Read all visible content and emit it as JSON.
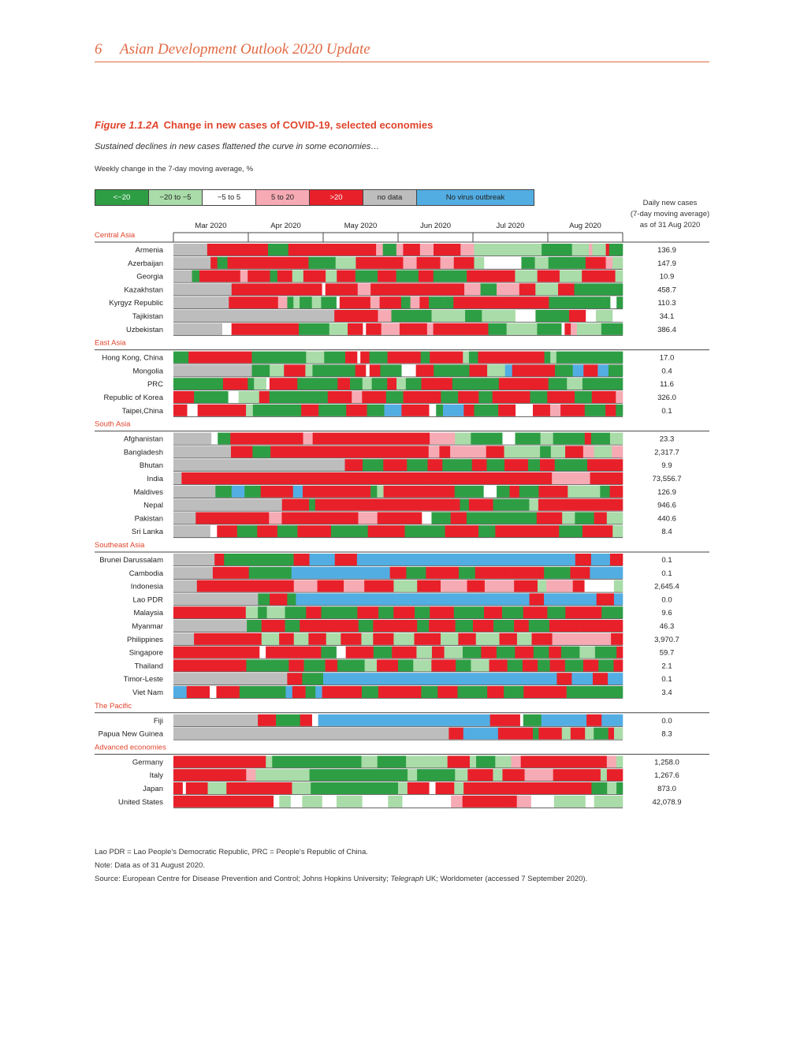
{
  "header": {
    "page_number": "6",
    "title": "Asian Development Outlook 2020 Update"
  },
  "figure": {
    "label": "Figure 1.1.2A",
    "title": "Change in new cases of COVID-19, selected economies",
    "subtitle": "Sustained declines in new cases flattened the curve in some economies…",
    "unit": "Weekly change in the 7-day moving average, %"
  },
  "legend": [
    {
      "key": "a",
      "label": "<−20",
      "color": "#2e9e44",
      "text_color": "#ffffff"
    },
    {
      "key": "b",
      "label": "−20 to −5",
      "color": "#a9dca8",
      "text_color": "#222222"
    },
    {
      "key": "c",
      "label": "−5 to 5",
      "color": "#ffffff",
      "text_color": "#222222"
    },
    {
      "key": "d",
      "label": "5 to 20",
      "color": "#f6aab4",
      "text_color": "#222222"
    },
    {
      "key": "e",
      "label": ">20",
      "color": "#e8202a",
      "text_color": "#ffffff"
    },
    {
      "key": "n",
      "label": "no data",
      "color": "#bdbdbd",
      "text_color": "#222222"
    },
    {
      "key": "v",
      "label": "No virus outbreak",
      "color": "#52ade2",
      "text_color": "#222222"
    }
  ],
  "daily_cases_header": [
    "Daily new cases",
    "(7-day moving average)",
    "as of 31 Aug 2020"
  ],
  "footnotes": {
    "abbrev": "Lao PDR = Lao People's Democratic Republic, PRC = People's Republic of China.",
    "note": "Note: Data as of 31 August 2020.",
    "source_before": "Source: European Centre for Disease Prevention and Control; Johns Hopkins University; ",
    "source_italic": "Telegraph",
    "source_after": " UK; Worldometer (accessed 7 September 2020)."
  },
  "chart_data": {
    "type": "heatmap",
    "months": [
      "Mar 2020",
      "Apr 2020",
      "May 2020",
      "Jun 2020",
      "Jul 2020",
      "Aug 2020"
    ],
    "x_range": [
      "2020-02-01",
      "2020-08-31"
    ],
    "groups": [
      {
        "name": "Central Asia",
        "rows": [
          {
            "name": "Armenia",
            "value": "136.9",
            "segments": "n10 e3 e15 a6 e21 e5 d2 a4 d2 e5 d4 e8 d4 b20 a9 b5 d1 b4 e1 a4"
          },
          {
            "name": "Azerbaijan",
            "value": "147.9",
            "segments": "n11 e2 a3 e1 e23 a8 b6 e3 e9 e2 d4 e7 d4 e6 b3 c11 a4 b4 a11 e6 d2 b3"
          },
          {
            "name": "Georgia",
            "value": "10.9",
            "segments": "n5 a2 e3 e8 d2 e6 a2 e4 b3 e3 e3 b3 e5 a6 e5 a6 e4 a9 e7 e6 b6 e6 b6 e7 e2 b2"
          },
          {
            "name": "Kazakhstan",
            "value": "458.7",
            "segments": "n18 e10 e12 e6 c1 e5 e5 d4 e2 e5 e5 e5 e12 d5 a5 d7 e5 b7 e5 a15"
          },
          {
            "name": "Kyrgyz Republic",
            "value": "110.3",
            "segments": "n18 e8 e8 d3 a2 b2 a4 b3 a5 c1 e10 d3 e3 e4 a3 d3 e3 a5 a3 e18 e1 e3 e3 e6 a10 a8 a2 c2 a2"
          },
          {
            "name": "Tajikistan",
            "value": "34.1",
            "segments": "n48 e5 e8 d4 a3 a4 a5 b10 a5 b10 c6 a10 e5 c3 b5 c3"
          },
          {
            "name": "Uzbekistan",
            "value": "386.4",
            "segments": "n16 c3 e22 a10 b6 e5 c1 e5 d6 e9 d2 e8 e6 e4 a6 b10 a8 c1 e2 d2 b8 a7"
          }
        ]
      },
      {
        "name": "East Asia",
        "rows": [
          {
            "name": "Hong Kong, China",
            "value": "17.0",
            "segments": "a5 e21 a18 b6 a7 e4 c1 e3 a6 e5 e6 a3 e11 b2 a3 e22 a2 b2 a22"
          },
          {
            "name": "Mongolia",
            "value": "0.4",
            "segments": "n22 a5 b4 e6 b2 a12 e3 c1 e3 a6 c4 e5 a10 e5 b5 v2 e12 a5 v3 e4 v3 a4"
          },
          {
            "name": "PRC",
            "value": "11.6",
            "segments": "a16 e8 a2 b4 c1 e9 a13 e4 a4 b3 a5 e3 b3 a5 e10 a15 e16 a6 b5 a13"
          },
          {
            "name": "Republic of Korea",
            "value": "326.0",
            "segments": "e6 a10 c3 b6 e3 a17 e4 e3 d3 e7 a5 e6 e5 a5 e6 a4 e6 e5 a5 e2 e6 a5 e3 e4 d2"
          },
          {
            "name": "Taipei,China",
            "value": "0.1",
            "segments": "e4 c3 e14 b2 a14 e5 a8 e6 a5 v5 e5 e3 c2 a2 v6 e3 a7 e5 c5 e5 d3 e7 a6 e3 a2"
          }
        ]
      },
      {
        "name": "South Asia",
        "rows": [
          {
            "name": "Afghanistan",
            "value": "23.3",
            "segments": "n12 c2 a4 e23 d3 e37 d8 b5 a10 c4 a8 b4 a10 e2 a6 b4"
          },
          {
            "name": "Bangladesh",
            "value": "2,317.7",
            "segments": "n16 e6 a5 e44 d3 e3 d10 e5 b10 a3 b4 e5 d3 b5 d3"
          },
          {
            "name": "Bhutan",
            "value": "9.9",
            "segments": "n58 e6 a7 e8 a7 e5 a10 e5 a6 e8 a4 e5 a6 a5 e8 e4"
          },
          {
            "name": "India",
            "value": "73,556.7",
            "segments": "n3 e80 e18 e3 e35 d14 e12"
          },
          {
            "name": "Maldives",
            "value": "126.9",
            "segments": "n13 a5 v4 a5 e6 e4 v3 e3 e18 a2 b2 e13 e9 a9 c4 a4 e3 a6 e9 b5 b5 a3 e4"
          },
          {
            "name": "Nepal",
            "value": "946.6",
            "segments": "n36 e9 a2 e5 e40 e2 e1 a3 e8 a12 b3 e28"
          },
          {
            "name": "Pakistan",
            "value": "440.6",
            "segments": "n7 e16 e7 d4 e19 e5 d6 e14 c3 a6 e5 a22 e8 b4 a6 e4 b5"
          },
          {
            "name": "Sri Lanka",
            "value": "8.4",
            "segments": "n11 c2 e6 a6 e6 a6 e10 a11 e3 e8 a12 e3 e3 e4 a5 e12 e7 a7 e5 e4 b3"
          }
        ]
      },
      {
        "name": "Southeast Asia",
        "rows": [
          {
            "name": "Brunei Darussalam",
            "value": "0.1",
            "segments": "n13 e3 a8 a14 e5 v8 e7 v69 e5 v6 e4"
          },
          {
            "name": "Cambodia",
            "value": "0.1",
            "segments": "n12 e11 a13 v30 e5 a6 e5 e5 a5 e6 e5 e5 e5 a8 e6 v10"
          },
          {
            "name": "Indonesia",
            "value": "2,645.4",
            "segments": "n8 e33 d8 e9 d7 e10 b8 e8 d9 e6 d10 e8 b3 d9 e4 c10 b3"
          },
          {
            "name": "Lao PDR",
            "value": "0.0",
            "segments": "n29 a4 e6 a3 v80 e5 v18 e6 v3"
          },
          {
            "name": "Malaysia",
            "value": "9.6",
            "segments": "e24 b4 a3 b6 a7 e5 a12 e7 a5 e7 a5 e8 a10 e6 a7 e8 a6 e7 e5 a7"
          },
          {
            "name": "Myanmar",
            "value": "46.3",
            "segments": "n25 a5 e8 a5 e11 e9 a5 e7 e8 a4 e9 a6 e7 a7 e5 a7 e6 e4 e15"
          },
          {
            "name": "Philippines",
            "value": "3,970.7",
            "segments": "n7 e23 b6 e5 b5 e6 b5 e7 b4 e7 b7 e9 b6 e6 b8 e6 b5 e7 d10 d10 e4"
          },
          {
            "name": "Singapore",
            "value": "59.7",
            "segments": "e28 c2 e18 a5 c3 e9 a6 e8 b5 e4 b6 a6 e5 a6 e6 a5 e4 a6 b5 a7 e2"
          },
          {
            "name": "Thailand",
            "value": "2.1",
            "segments": "e24 a4 a10 e5 a7 e4 a9 b4 e7 a5 b6 e8 a5 b6 e6 a5 e5 a4 e5 a6 e5 a5 e3"
          },
          {
            "name": "Timor-Leste",
            "value": "0.1",
            "segments": "n38 e5 a7 v78 e5 v7 e5 v5"
          },
          {
            "name": "Viet Nam",
            "value": "3.4",
            "segments": "v4 e7 c2 e7 a14 v2 e4 a3 v2 e5 e7 a5 e8 e5 a5 e6 a9 e5 a6 e7 e6 a17"
          }
        ]
      },
      {
        "name": "The Pacific",
        "rows": [
          {
            "name": "Fiji",
            "value": "0.0",
            "segments": "n28 e6 a8 e4 c2 v57 e10 c1 a6 v15 e5 v7"
          },
          {
            "name": "Papua New Guinea",
            "value": "8.3",
            "segments": "n95 e5 v12 e12 a2 e8 b3 e5 b3 a5 e2 b3"
          }
        ]
      },
      {
        "name": "Advanced economies",
        "rows": [
          {
            "name": "Germany",
            "value": "1,258.0",
            "segments": "e29 b2 a5 a11 a12 b5 a9 b8 b5 e7 b2 a6 b5 d3 e18 e9 d3 b2"
          },
          {
            "name": "Italy",
            "value": "1,267.6",
            "segments": "e23 d3 b10 b7 a31 b3 a12 b4 e8 b3 e7 d9 e15 b2 e5"
          },
          {
            "name": "Japan",
            "value": "873.0",
            "segments": "e3 c1 e7 b6 e21 b6 a28 b3 e7 c2 e6 b3 e5 e36 a5 b3 a2"
          },
          {
            "name": "United States",
            "value": "42,078.9",
            "segments": "e35 c2 b4 c4 b3 b4 c5 b9 c9 b5 c17 d4 e15 e4 d5 c8 b11 c3 b10"
          }
        ]
      }
    ]
  }
}
